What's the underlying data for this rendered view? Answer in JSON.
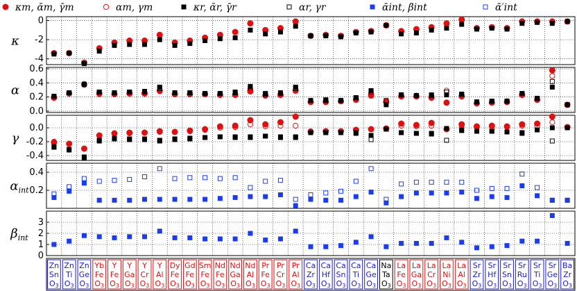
{
  "chart_data": {
    "type": "scatter",
    "categories": [
      [
        "Zn",
        "Sn",
        "O3"
      ],
      [
        "Zn",
        "Ti",
        "O3"
      ],
      [
        "Zn",
        "Ge",
        "O3"
      ],
      [
        "Yb",
        "Fe",
        "O3"
      ],
      [
        "Y",
        "Fe",
        "O3"
      ],
      [
        "Y",
        "Ga",
        "O3"
      ],
      [
        "Y",
        "Cr",
        "O3"
      ],
      [
        "Y",
        "Al",
        "O3"
      ],
      [
        "Dy",
        "Fe",
        "O3"
      ],
      [
        "Gd",
        "Fe",
        "O3"
      ],
      [
        "Sm",
        "Fe",
        "O3"
      ],
      [
        "Nd",
        "Fe",
        "O3"
      ],
      [
        "Nd",
        "Ga",
        "O3"
      ],
      [
        "Nd",
        "Al",
        "O3"
      ],
      [
        "Pr",
        "Fe",
        "O3"
      ],
      [
        "Pr",
        "Cr",
        "O3"
      ],
      [
        "Pr",
        "Al",
        "O3"
      ],
      [
        "Ca",
        "Zr",
        "O3"
      ],
      [
        "Ca",
        "Hf",
        "O3"
      ],
      [
        "Ca",
        "Sn",
        "O3"
      ],
      [
        "Ca",
        "Ti",
        "O3"
      ],
      [
        "Ca",
        "Ge",
        "O3"
      ],
      [
        "Na",
        "Ta",
        "O3"
      ],
      [
        "La",
        "Fe",
        "O3"
      ],
      [
        "La",
        "Ga",
        "O3"
      ],
      [
        "La",
        "Cr",
        "O3"
      ],
      [
        "La",
        "Ni",
        "O3"
      ],
      [
        "La",
        "Al",
        "O3"
      ],
      [
        "Sr",
        "Zr",
        "O3"
      ],
      [
        "Sr",
        "Hf",
        "O3"
      ],
      [
        "Sr",
        "Sn",
        "O3"
      ],
      [
        "Sr",
        "Ru",
        "O3"
      ],
      [
        "Sr",
        "Ti",
        "O3"
      ],
      [
        "Sr",
        "Ge",
        "O3"
      ],
      [
        "Ba",
        "Zr",
        "O3"
      ]
    ],
    "label_colors": [
      "#1a1ad6",
      "#1a1ad6",
      "#1a1ad6",
      "#e01010",
      "#e01010",
      "#e01010",
      "#e01010",
      "#e01010",
      "#e01010",
      "#e01010",
      "#e01010",
      "#e01010",
      "#e01010",
      "#e01010",
      "#e01010",
      "#e01010",
      "#e01010",
      "#1a1ad6",
      "#1a1ad6",
      "#1a1ad6",
      "#1a1ad6",
      "#1a1ad6",
      "#000000",
      "#e01010",
      "#e01010",
      "#e01010",
      "#e01010",
      "#e01010",
      "#1a1ad6",
      "#1a1ad6",
      "#1a1ad6",
      "#1a1ad6",
      "#1a1ad6",
      "#1a1ad6",
      "#1a1ad6"
    ],
    "legend": [
      {
        "label": "κm, ᾱm, γ̄m",
        "marker": "filled-circle",
        "color": "#e01010"
      },
      {
        "label": "αm, γm",
        "marker": "open-circle",
        "color": "#e01010"
      },
      {
        "label": "κr, ᾱr, γ̄r",
        "marker": "filled-square",
        "color": "#000000"
      },
      {
        "label": "αr, γr",
        "marker": "open-square",
        "color": "#000000"
      },
      {
        "label": "ᾱint, β̄int",
        "marker": "filled-square",
        "color": "#1a3cf0"
      },
      {
        "label": "ᾱ′int",
        "marker": "open-square",
        "color": "#1a3cf0"
      }
    ],
    "panels": [
      {
        "ylabel": "κ",
        "ylim": [
          -4.6,
          0.4
        ],
        "yticks": [
          0,
          -2,
          -4
        ],
        "series": [
          {
            "marker": "filled-circle",
            "color": "#e01010",
            "values": [
              -3.4,
              -3.4,
              -4.4,
              -2.9,
              -2.3,
              -2.1,
              -2.1,
              -1.5,
              -2.3,
              -2.1,
              -1.8,
              -1.5,
              -1.2,
              -0.3,
              -1.0,
              -0.8,
              -0.1,
              -1.6,
              -1.5,
              -1.6,
              -1.2,
              -1.1,
              -0.5,
              -1.1,
              -0.9,
              -0.7,
              -0.3,
              0.1,
              -0.8,
              -0.7,
              -0.8,
              -0.1,
              -0.1,
              -0.1,
              -0.1
            ]
          },
          {
            "marker": "filled-square",
            "color": "#000000",
            "values": [
              -3.5,
              -3.4,
              -4.5,
              -3.2,
              -2.6,
              -2.5,
              -2.5,
              -2.0,
              -2.6,
              -2.4,
              -2.1,
              -1.9,
              -1.8,
              -1.0,
              -1.4,
              -1.2,
              -0.6,
              -1.6,
              -1.6,
              -1.7,
              -1.3,
              -1.2,
              -0.5,
              -1.4,
              -1.3,
              -1.0,
              -0.8,
              -0.4,
              -0.9,
              -0.8,
              -0.9,
              -0.3,
              -0.2,
              -0.3,
              -0.1
            ]
          }
        ]
      },
      {
        "ylabel": "α",
        "ylim": [
          -0.02,
          0.62
        ],
        "yticks": [
          0.0,
          0.2,
          0.4,
          0.6
        ],
        "series": [
          {
            "marker": "filled-circle",
            "color": "#e01010",
            "values": [
              0.19,
              0.25,
              0.38,
              0.25,
              0.24,
              0.25,
              0.25,
              0.29,
              0.24,
              0.24,
              0.24,
              0.23,
              0.23,
              0.28,
              0.22,
              0.23,
              0.29,
              0.13,
              0.13,
              0.14,
              0.16,
              0.22,
              0.13,
              0.21,
              0.21,
              0.19,
              0.12,
              0.21,
              0.11,
              0.12,
              0.13,
              0.23,
              0.16,
              0.58,
              0.09
            ]
          },
          {
            "marker": "open-circle",
            "color": "#e01010",
            "values": [
              0.19,
              0.25,
              0.37,
              0.24,
              0.25,
              0.26,
              0.26,
              0.28,
              0.24,
              0.24,
              0.24,
              0.24,
              0.24,
              0.31,
              0.23,
              0.23,
              0.3,
              0.13,
              0.14,
              0.14,
              0.17,
              0.25,
              0.14,
              0.21,
              0.22,
              0.21,
              0.29,
              0.23,
              0.12,
              0.13,
              0.14,
              0.24,
              0.17,
              0.5,
              0.09
            ]
          },
          {
            "marker": "filled-square",
            "color": "#000000",
            "values": [
              0.21,
              0.26,
              0.38,
              0.27,
              0.26,
              0.27,
              0.28,
              0.34,
              0.26,
              0.26,
              0.25,
              0.25,
              0.27,
              0.35,
              0.24,
              0.26,
              0.34,
              0.15,
              0.16,
              0.15,
              0.19,
              0.29,
              0.09,
              0.23,
              0.22,
              0.23,
              0.23,
              0.24,
              0.13,
              0.14,
              0.14,
              0.25,
              0.18,
              0.34,
              0.09
            ]
          },
          {
            "marker": "open-square",
            "color": "#000000",
            "values": [
              0.21,
              0.26,
              0.38,
              0.27,
              0.26,
              0.27,
              0.27,
              0.32,
              0.26,
              0.26,
              0.25,
              0.25,
              0.26,
              0.33,
              0.25,
              0.25,
              0.32,
              0.15,
              0.15,
              0.15,
              0.19,
              0.27,
              0.15,
              0.23,
              0.22,
              0.22,
              0.27,
              0.24,
              0.13,
              0.14,
              0.14,
              0.25,
              0.18,
              0.42,
              0.09
            ]
          }
        ]
      },
      {
        "ylabel": "γ",
        "ylim": [
          -0.47,
          0.18
        ],
        "yticks": [
          0.0,
          -0.2,
          -0.4
        ],
        "series": [
          {
            "marker": "filled-circle",
            "color": "#e01010",
            "values": [
              -0.21,
              -0.23,
              -0.3,
              -0.11,
              -0.08,
              -0.07,
              -0.07,
              -0.05,
              -0.06,
              -0.04,
              -0.02,
              0.02,
              0.03,
              0.11,
              0.05,
              0.08,
              0.16,
              -0.06,
              -0.05,
              -0.05,
              -0.03,
              -0.02,
              -0.01,
              0.06,
              0.04,
              0.07,
              -0.02,
              0.05,
              0.02,
              0.03,
              0.02,
              0.05,
              0.06,
              0.16,
              0.01
            ]
          },
          {
            "marker": "open-circle",
            "color": "#e01010",
            "values": [
              -0.2,
              -0.23,
              -0.3,
              -0.11,
              -0.08,
              -0.08,
              -0.07,
              -0.06,
              -0.06,
              -0.05,
              -0.03,
              0.0,
              0.01,
              0.05,
              0.02,
              0.03,
              0.03,
              -0.05,
              -0.05,
              -0.05,
              -0.03,
              -0.02,
              -0.01,
              0.03,
              0.02,
              0.03,
              -0.02,
              0.03,
              0.01,
              0.01,
              0.01,
              0.03,
              0.02,
              0.08,
              0.01
            ]
          },
          {
            "marker": "filled-square",
            "color": "#000000",
            "values": [
              -0.28,
              -0.32,
              -0.43,
              -0.19,
              -0.16,
              -0.17,
              -0.17,
              -0.19,
              -0.17,
              -0.16,
              -0.14,
              -0.13,
              -0.14,
              -0.14,
              -0.12,
              -0.14,
              -0.14,
              -0.07,
              -0.07,
              -0.07,
              -0.07,
              -0.11,
              -0.02,
              -0.07,
              -0.08,
              -0.09,
              -0.01,
              -0.03,
              -0.05,
              -0.05,
              -0.06,
              -0.07,
              -0.03,
              0.0,
              0.0
            ]
          },
          {
            "marker": "open-square",
            "color": "#000000",
            "values": [
              -0.27,
              -0.31,
              -0.42,
              -0.18,
              -0.15,
              -0.16,
              -0.16,
              -0.18,
              -0.16,
              -0.15,
              -0.14,
              -0.13,
              -0.13,
              -0.13,
              -0.12,
              -0.13,
              -0.13,
              -0.07,
              -0.07,
              -0.07,
              -0.08,
              -0.17,
              -0.02,
              -0.07,
              -0.08,
              -0.08,
              -0.18,
              -0.04,
              -0.05,
              -0.05,
              -0.06,
              -0.08,
              -0.03,
              -0.19,
              0.0
            ]
          }
        ]
      },
      {
        "ylabel": "αint",
        "ylim": [
          0.0,
          0.5
        ],
        "yticks": [
          0.4,
          0.2
        ],
        "series": [
          {
            "marker": "filled-square",
            "color": "#1a3cf0",
            "values": [
              0.12,
              0.19,
              0.28,
              0.09,
              0.09,
              0.09,
              0.1,
              0.1,
              0.1,
              0.1,
              0.1,
              0.11,
              0.12,
              0.13,
              0.13,
              0.15,
              0.03,
              0.1,
              0.09,
              0.09,
              0.13,
              0.18,
              0.06,
              0.13,
              0.17,
              0.17,
              0.17,
              0.18,
              0.11,
              0.13,
              0.12,
              0.25,
              0.14,
              0.09,
              0.09
            ]
          },
          {
            "marker": "open-square",
            "color": "#1a3cf0",
            "values": [
              0.16,
              0.24,
              0.33,
              0.3,
              0.31,
              0.32,
              0.35,
              0.44,
              0.33,
              0.34,
              0.34,
              0.33,
              0.34,
              0.23,
              0.3,
              0.31,
              0.1,
              0.15,
              0.17,
              0.19,
              0.3,
              0.44,
              0.1,
              0.27,
              0.29,
              0.29,
              0.29,
              0.29,
              0.2,
              0.22,
              0.22,
              0.38,
              0.23,
              0.09,
              0.09
            ]
          }
        ]
      },
      {
        "ylabel": "βint",
        "ylim": [
          0,
          4
        ],
        "yticks": [
          3,
          2,
          1,
          0
        ],
        "series": [
          {
            "marker": "filled-square",
            "color": "#1a3cf0",
            "values": [
              1.0,
              1.3,
              1.8,
              1.7,
              1.6,
              1.7,
              1.7,
              2.2,
              1.6,
              1.6,
              1.5,
              1.5,
              1.5,
              2.0,
              1.4,
              1.5,
              2.2,
              0.8,
              0.8,
              0.9,
              1.2,
              1.7,
              0.8,
              1.1,
              1.1,
              1.1,
              1.6,
              1.2,
              0.7,
              0.8,
              0.9,
              1.3,
              1.3,
              3.6,
              1.1
            ]
          }
        ]
      }
    ]
  }
}
